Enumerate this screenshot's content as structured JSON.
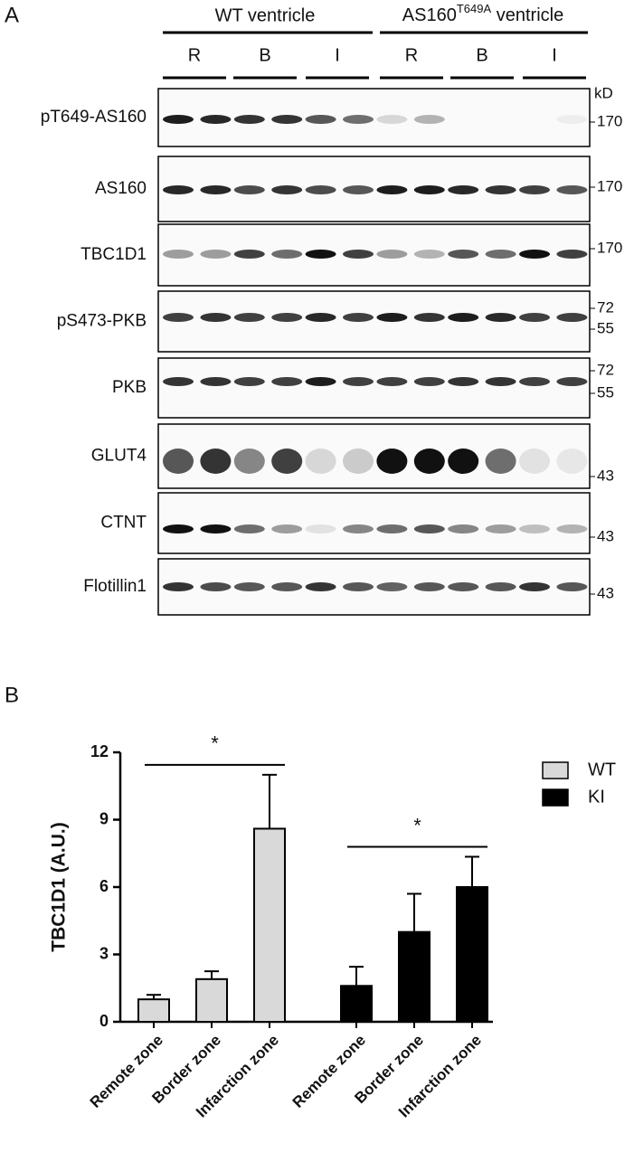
{
  "panel_a": {
    "label": "A",
    "groups": [
      {
        "label": "WT ventricle"
      },
      {
        "label": "AS160",
        "superscript": "T649A",
        "suffix": " ventricle"
      }
    ],
    "lanes": [
      "R",
      "B",
      "I",
      "R",
      "B",
      "I"
    ],
    "kd_label": "kD",
    "blots": [
      {
        "name": "pT649-AS160",
        "markers": [
          170
        ]
      },
      {
        "name": "AS160",
        "markers": [
          170
        ]
      },
      {
        "name": "TBC1D1",
        "markers": [
          170
        ]
      },
      {
        "name": "pS473-PKB",
        "markers": [
          72,
          55
        ]
      },
      {
        "name": "PKB",
        "markers": [
          72,
          55
        ]
      },
      {
        "name": "GLUT4",
        "markers": [
          43
        ]
      },
      {
        "name": "CTNT",
        "markers": [
          43
        ]
      },
      {
        "name": "Flotillin1",
        "markers": [
          43
        ]
      }
    ]
  },
  "panel_b": {
    "label": "B"
  },
  "chart_data": {
    "type": "bar",
    "ylabel": "TBC1D1 (A.U.)",
    "categories": [
      "Remote zone",
      "Border zone",
      "Infarction zone",
      "Remote zone",
      "Border zone",
      "Infarction zone"
    ],
    "series": [
      {
        "name": "WT",
        "color": "#d9d9d9",
        "values": [
          1.0,
          1.9,
          8.6,
          null,
          null,
          null
        ],
        "errors": [
          0.2,
          0.35,
          2.4,
          null,
          null,
          null
        ]
      },
      {
        "name": "KI",
        "color": "#000000",
        "values": [
          null,
          null,
          null,
          1.6,
          4.0,
          6.0
        ],
        "errors": [
          null,
          null,
          null,
          0.85,
          1.7,
          1.35
        ]
      }
    ],
    "ylim": [
      0,
      12
    ],
    "yticks": [
      0,
      3,
      6,
      9,
      12
    ],
    "annotations": [
      {
        "text": "*",
        "categories": [
          0,
          2
        ]
      },
      {
        "text": "*",
        "categories": [
          3,
          5
        ]
      }
    ],
    "legend": "top-right"
  }
}
